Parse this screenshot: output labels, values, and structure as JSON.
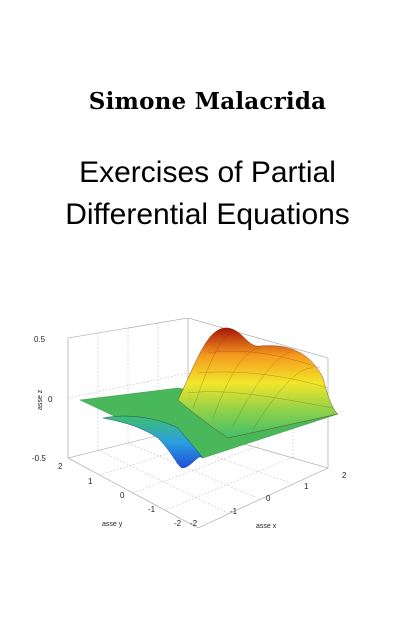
{
  "cover": {
    "author": "Simone Malacrida",
    "title_line1": "Exercises of Partial",
    "title_line2": "Differential Equations"
  },
  "figure": {
    "z_label": "asse z",
    "y_label": "asse y",
    "x_label": "asse x",
    "z_ticks": [
      "0.5",
      "0",
      "-0.5"
    ],
    "y_ticks": [
      "2",
      "1",
      "0",
      "-1",
      "-2"
    ],
    "x_ticks": [
      "-2",
      "-1",
      "0",
      "1",
      "2"
    ],
    "surface_colors": [
      "#1f4fd6",
      "#2aa0e0",
      "#3fbf6a",
      "#8fd14a",
      "#f2e62a",
      "#f59a1e",
      "#e23a12",
      "#a8140a"
    ]
  }
}
